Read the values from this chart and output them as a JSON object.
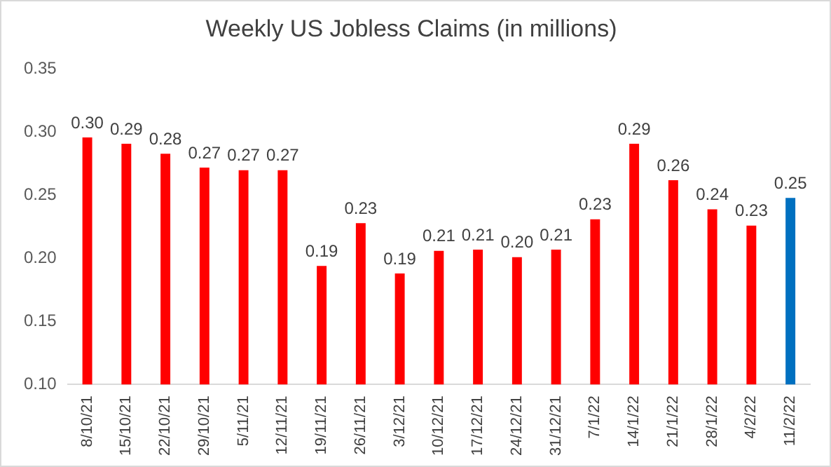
{
  "chart_data": {
    "type": "bar",
    "title": "Weekly US Jobless Claims (in millions)",
    "categories": [
      "8/10/21",
      "15/10/21",
      "22/10/21",
      "29/10/21",
      "5/11/21",
      "12/11/21",
      "19/11/21",
      "26/11/21",
      "3/12/21",
      "10/12/21",
      "17/12/21",
      "24/12/21",
      "31/12/21",
      "7/1/22",
      "14/1/22",
      "21/1/22",
      "28/1/22",
      "4/2/22",
      "11/2/22"
    ],
    "values": [
      0.296,
      0.291,
      0.283,
      0.272,
      0.27,
      0.27,
      0.194,
      0.228,
      0.188,
      0.206,
      0.207,
      0.201,
      0.207,
      0.231,
      0.291,
      0.262,
      0.239,
      0.226,
      0.248
    ],
    "colors": [
      "#ff0000",
      "#ff0000",
      "#ff0000",
      "#ff0000",
      "#ff0000",
      "#ff0000",
      "#ff0000",
      "#ff0000",
      "#ff0000",
      "#ff0000",
      "#ff0000",
      "#ff0000",
      "#ff0000",
      "#ff0000",
      "#ff0000",
      "#ff0000",
      "#ff0000",
      "#ff0000",
      "#0070c0"
    ],
    "value_labels": [
      "0.30",
      "0.29",
      "0.28",
      "0.27",
      "0.27",
      "0.27",
      "0.19",
      "0.23",
      "0.19",
      "0.21",
      "0.21",
      "0.20",
      "0.21",
      "0.23",
      "0.29",
      "0.26",
      "0.24",
      "0.23",
      "0.25"
    ],
    "ylim": [
      0.1,
      0.35
    ],
    "yticks": [
      {
        "value": 0.1,
        "label": "0.10"
      },
      {
        "value": 0.15,
        "label": "0.15"
      },
      {
        "value": 0.2,
        "label": "0.20"
      },
      {
        "value": 0.25,
        "label": "0.25"
      },
      {
        "value": 0.3,
        "label": "0.30"
      },
      {
        "value": 0.35,
        "label": "0.35"
      }
    ],
    "grid": false,
    "legend": false
  }
}
